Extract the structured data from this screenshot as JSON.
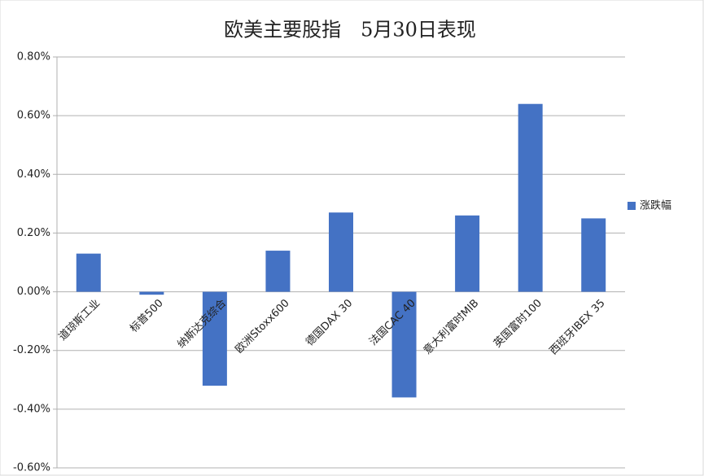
{
  "chart_data": {
    "type": "bar",
    "title": "欧美主要股指　5月30日表现",
    "categories": [
      "道琼斯工业",
      "标普500",
      "纳斯达克综合",
      "欧洲Stoxx600",
      "德国DAX 30",
      "法国CAC 40",
      "意大利富时MIB",
      "英国富时100",
      "西班牙IBEX 35"
    ],
    "series": [
      {
        "name": "涨跌幅",
        "color": "#4472c4",
        "values": [
          0.13,
          -0.01,
          -0.32,
          0.14,
          0.27,
          -0.36,
          0.26,
          0.64,
          0.25
        ]
      }
    ],
    "ylim": [
      -0.6,
      0.8
    ],
    "yticks": [
      {
        "value": -0.6,
        "label": "-0.60%"
      },
      {
        "value": -0.4,
        "label": "-0.40%"
      },
      {
        "value": -0.2,
        "label": "-0.20%"
      },
      {
        "value": 0,
        "label": "0.00%"
      },
      {
        "value": 0.2,
        "label": "0.20%"
      },
      {
        "value": 0.4,
        "label": "0.40%"
      },
      {
        "value": 0.6,
        "label": "0.60%"
      },
      {
        "value": 0.8,
        "label": "0.80%"
      }
    ],
    "grid": true,
    "legend": "right"
  }
}
